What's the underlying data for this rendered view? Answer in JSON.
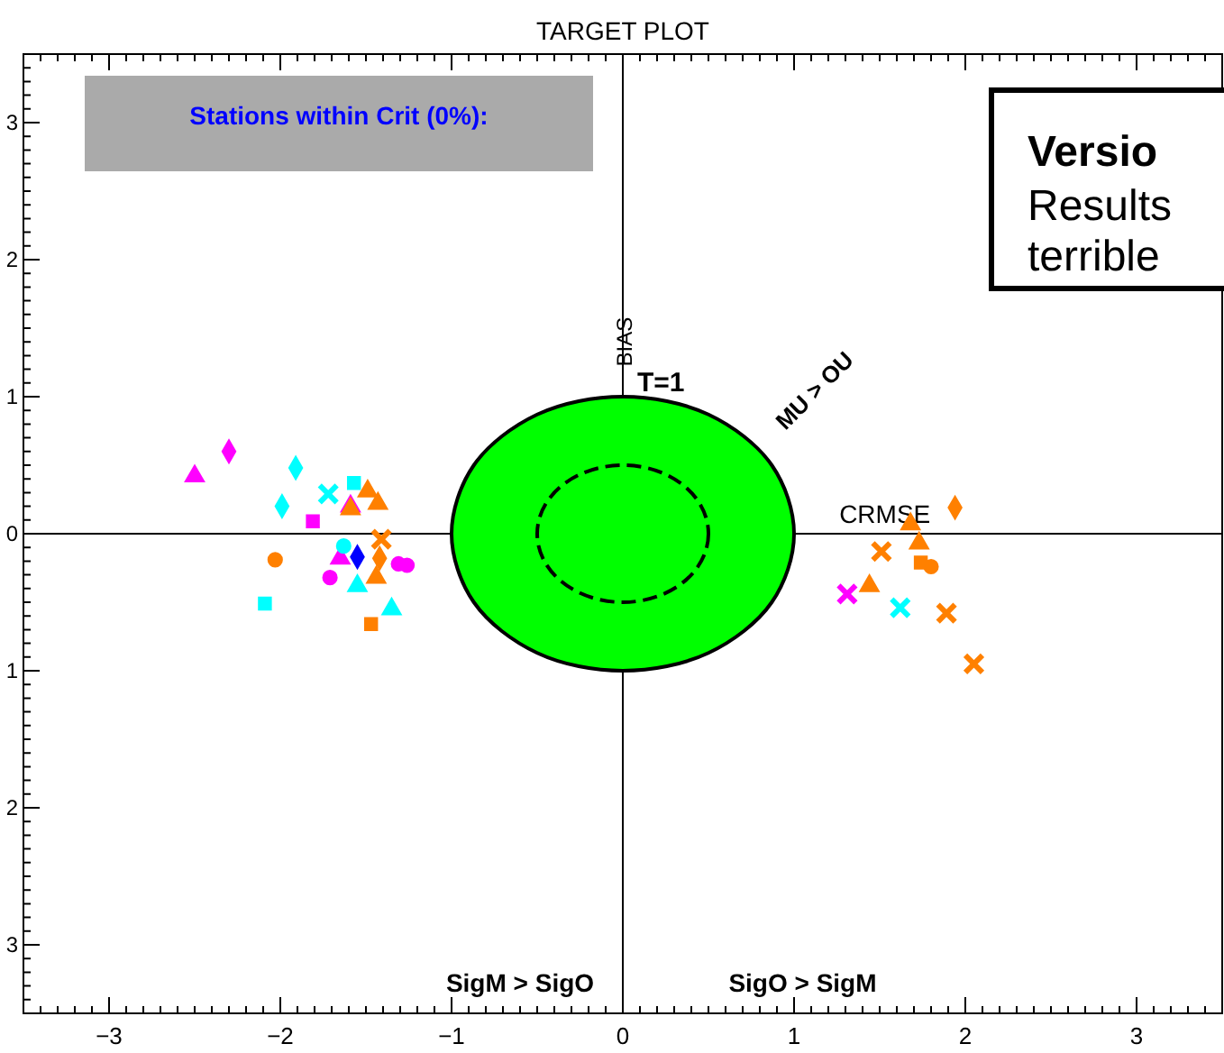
{
  "chart_data": {
    "type": "scatter",
    "title": "TARGET PLOT",
    "xlim": [
      -3.5,
      3.5
    ],
    "ylim": [
      -3.5,
      3.5
    ],
    "xticks": [
      {
        "value": -3,
        "label": "−3"
      },
      {
        "value": -2,
        "label": "−2"
      },
      {
        "value": -1,
        "label": "−1"
      },
      0,
      1,
      2,
      3
    ],
    "yticks": [
      {
        "value": -3,
        "label": "3"
      },
      {
        "value": -2,
        "label": "2"
      },
      {
        "value": -1,
        "label": "1"
      },
      0,
      1,
      2,
      3
    ],
    "ref_lines": [
      {
        "axis": "x",
        "value": 0,
        "color": "#000000",
        "label": "BIAS"
      },
      {
        "axis": "y",
        "value": 0,
        "color": "#000000",
        "label": "CRMSE"
      }
    ],
    "annotations": [
      "Stations within Crit (0%):",
      {
        "text": "T=1",
        "x": 0,
        "y": 1
      },
      "MU > OU",
      "SigM > SigO",
      "SigO > SigM",
      "Versio",
      "Results",
      "terrible"
    ],
    "series": [
      {
        "type": "area",
        "color": "#00ff00",
        "x": [
          1,
          0.87,
          0.5,
          0,
          -0.5,
          -0.87,
          -1,
          -0.87,
          -0.5,
          0,
          0.5,
          0.87
        ],
        "values": [
          0,
          0.5,
          0.87,
          1,
          0.87,
          0.5,
          0,
          -0.5,
          -0.87,
          -1,
          -0.87,
          -0.5
        ]
      },
      {
        "color": "#ff00ff",
        "marker": "triangle",
        "x": [
          -2.5,
          -1.59,
          -1.65
        ],
        "values": [
          0.42,
          0.2,
          -0.18
        ]
      },
      {
        "color": "#ff00ff",
        "marker": "diamond",
        "x": [
          -2.3
        ],
        "values": [
          0.6
        ]
      },
      {
        "color": "#ff00ff",
        "marker": "square",
        "x": [
          -1.81
        ],
        "values": [
          0.09
        ]
      },
      {
        "color": "#ff00ff",
        "marker": "circle",
        "x": [
          -1.71,
          -1.31,
          -1.26
        ],
        "values": [
          -0.32,
          -0.22,
          -0.23
        ]
      },
      {
        "color": "#ff00ff",
        "marker": "cross",
        "x": [
          1.31
        ],
        "values": [
          -0.44
        ]
      },
      {
        "color": "#00ffff",
        "marker": "diamond",
        "x": [
          -1.91,
          -1.99
        ],
        "values": [
          0.48,
          0.2
        ]
      },
      {
        "color": "#00ffff",
        "marker": "cross",
        "x": [
          -1.72,
          1.62
        ],
        "values": [
          0.29,
          -0.54
        ]
      },
      {
        "color": "#00ffff",
        "marker": "square",
        "x": [
          -1.57,
          -2.09
        ],
        "values": [
          0.37,
          -0.51
        ]
      },
      {
        "color": "#00ffff",
        "marker": "circle",
        "x": [
          -1.63
        ],
        "values": [
          -0.09
        ]
      },
      {
        "color": "#00ffff",
        "marker": "triangle",
        "x": [
          -1.55,
          -1.35
        ],
        "values": [
          -0.38,
          -0.55
        ]
      },
      {
        "color": "#ff8000",
        "marker": "triangle",
        "x": [
          -1.49,
          -1.59,
          -1.43,
          -1.44,
          1.68,
          1.73,
          1.44
        ],
        "values": [
          0.31,
          0.18,
          0.22,
          -0.32,
          0.07,
          -0.07,
          -0.38
        ]
      },
      {
        "color": "#ff8000",
        "marker": "cross",
        "x": [
          -1.41,
          1.51,
          1.89,
          2.05
        ],
        "values": [
          -0.04,
          -0.13,
          -0.58,
          -0.95
        ]
      },
      {
        "color": "#ff8000",
        "marker": "diamond",
        "x": [
          -1.42,
          1.94
        ],
        "values": [
          -0.18,
          0.19
        ]
      },
      {
        "color": "#ff8000",
        "marker": "circle",
        "x": [
          -2.03,
          1.8
        ],
        "values": [
          -0.19,
          -0.24
        ]
      },
      {
        "color": "#ff8000",
        "marker": "square",
        "x": [
          -1.47,
          1.74
        ],
        "values": [
          -0.66,
          -0.21
        ]
      },
      {
        "color": "#0000ff",
        "marker": "diamond",
        "x": [
          -1.55
        ],
        "values": [
          -0.17
        ]
      }
    ]
  }
}
